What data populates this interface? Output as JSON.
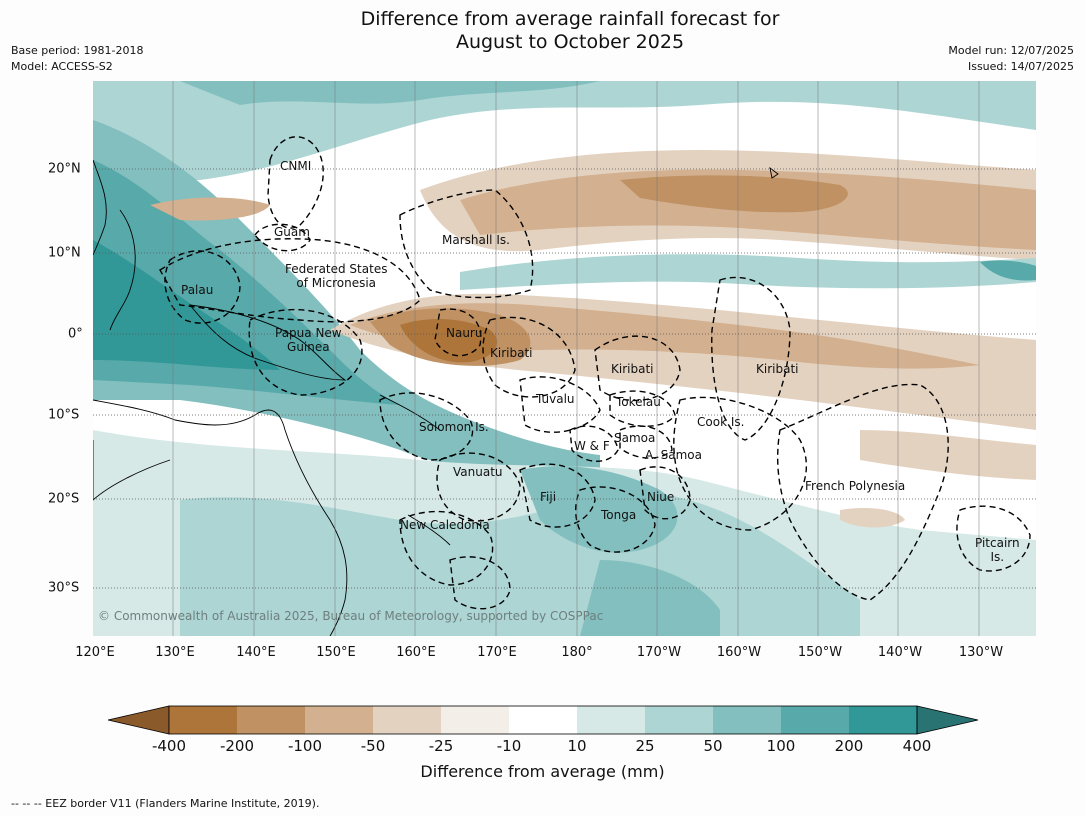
{
  "title": {
    "line1": "Difference from average rainfall forecast for",
    "line2": "August to October 2025"
  },
  "meta_left": {
    "base_period": "Base period: 1981-2018",
    "model": "Model: ACCESS-S2"
  },
  "meta_right": {
    "model_run": "Model run: 12/07/2025",
    "issued": "Issued: 14/07/2025"
  },
  "map": {
    "lon_labels": [
      "120°E",
      "130°E",
      "140°E",
      "150°E",
      "160°E",
      "170°E",
      "180°",
      "170°W",
      "160°W",
      "150°W",
      "140°W",
      "130°W"
    ],
    "lat_labels": [
      "20°N",
      "10°N",
      "0°",
      "10°S",
      "20°S",
      "30°S"
    ],
    "copyright": "© Commonwealth of Australia 2025, Bureau of Meteorology, supported by COSPPac",
    "regions": [
      {
        "id": "cnmi",
        "lines": [
          "CNMI"
        ]
      },
      {
        "id": "guam",
        "lines": [
          "Guam"
        ]
      },
      {
        "id": "marshall",
        "lines": [
          "Marshall Is."
        ]
      },
      {
        "id": "fsm",
        "lines": [
          "Federated States",
          "of Micronesia"
        ]
      },
      {
        "id": "palau",
        "lines": [
          "Palau"
        ]
      },
      {
        "id": "png",
        "lines": [
          "Papua New",
          "Guinea"
        ]
      },
      {
        "id": "nauru",
        "lines": [
          "Nauru"
        ]
      },
      {
        "id": "kiribati1",
        "lines": [
          "Kiribati"
        ]
      },
      {
        "id": "kiribati2",
        "lines": [
          "Kiribati"
        ]
      },
      {
        "id": "kiribati3",
        "lines": [
          "Kiribati"
        ]
      },
      {
        "id": "tuvalu",
        "lines": [
          "Tuvalu"
        ]
      },
      {
        "id": "tokelau",
        "lines": [
          "Tokelau"
        ]
      },
      {
        "id": "cook",
        "lines": [
          "Cook Is."
        ]
      },
      {
        "id": "solomon",
        "lines": [
          "Solomon Is."
        ]
      },
      {
        "id": "wf",
        "lines": [
          "W & F"
        ]
      },
      {
        "id": "samoa",
        "lines": [
          "Samoa"
        ]
      },
      {
        "id": "asamoa",
        "lines": [
          "A. Samoa"
        ]
      },
      {
        "id": "vanuatu",
        "lines": [
          "Vanuatu"
        ]
      },
      {
        "id": "fiji",
        "lines": [
          "Fiji"
        ]
      },
      {
        "id": "niue",
        "lines": [
          "Niue"
        ]
      },
      {
        "id": "frpoly",
        "lines": [
          "French Polynesia"
        ]
      },
      {
        "id": "tonga",
        "lines": [
          "Tonga"
        ]
      },
      {
        "id": "newcal",
        "lines": [
          "New Caledonia"
        ]
      },
      {
        "id": "pitcairn",
        "lines": [
          "Pitcairn",
          "Is."
        ]
      }
    ]
  },
  "colorbar": {
    "ticks": [
      "-400",
      "-200",
      "-100",
      "-50",
      "-25",
      "-10",
      "10",
      "25",
      "50",
      "100",
      "200",
      "400"
    ],
    "colors": [
      "#8b5a2b",
      "#ad7539",
      "#bf9163",
      "#d3b08f",
      "#e4d2c0",
      "#f3eee7",
      "#ffffff",
      "#d6e9e7",
      "#acd5d3",
      "#83bfbf",
      "#58a9aa",
      "#319797",
      "#2a7373"
    ],
    "label": "Difference from average (mm)"
  },
  "footer": "--  --  -- EEZ border V11 (Flanders Marine Institute, 2019)."
}
